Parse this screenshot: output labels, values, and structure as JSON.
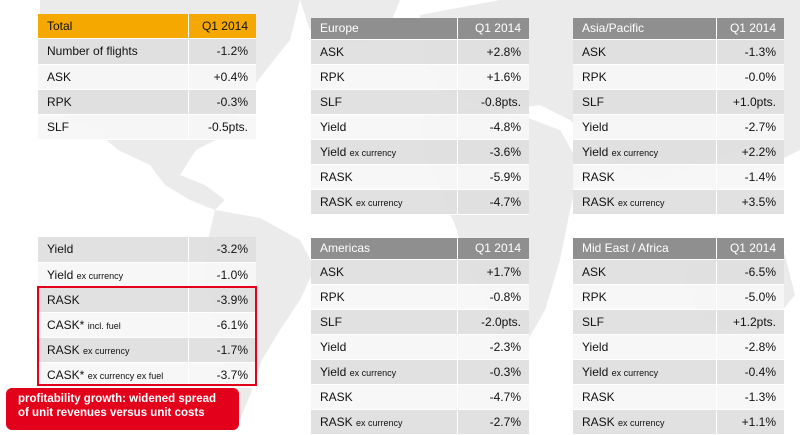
{
  "colors": {
    "total_header": "#f5a800",
    "region_header": "#8f8f8f",
    "callout": "#e3001b",
    "highlight_border": "#e3001b"
  },
  "total": {
    "title": "Total",
    "period": "Q1 2014",
    "rows": [
      {
        "label": "Number of flights",
        "value": "-1.2%"
      },
      {
        "label": "ASK",
        "value": "+0.4%"
      },
      {
        "label": "RPK",
        "value": "-0.3%"
      },
      {
        "label": "SLF",
        "value": "-0.5pts."
      }
    ]
  },
  "total_unit": {
    "rows": [
      {
        "label": "Yield",
        "suffix": "",
        "value": "-3.2%"
      },
      {
        "label": "Yield",
        "suffix": "ex currency",
        "value": "-1.0%"
      },
      {
        "label": "RASK",
        "suffix": "",
        "value": "-3.9%"
      },
      {
        "label": "CASK*",
        "suffix": "incl. fuel",
        "value": "-6.1%"
      },
      {
        "label": "RASK",
        "suffix": "ex currency",
        "value": "-1.7%"
      },
      {
        "label": "CASK*",
        "suffix": "ex currency ex fuel",
        "value": "-3.7%"
      }
    ]
  },
  "europe": {
    "title": "Europe",
    "period": "Q1 2014",
    "rows": [
      {
        "label": "ASK",
        "suffix": "",
        "value": "+2.8%"
      },
      {
        "label": "RPK",
        "suffix": "",
        "value": "+1.6%"
      },
      {
        "label": "SLF",
        "suffix": "",
        "value": "-0.8pts."
      },
      {
        "label": "Yield",
        "suffix": "",
        "value": "-4.8%"
      },
      {
        "label": "Yield",
        "suffix": "ex currency",
        "value": "-3.6%"
      },
      {
        "label": "RASK",
        "suffix": "",
        "value": "-5.9%"
      },
      {
        "label": "RASK",
        "suffix": "ex currency",
        "value": "-4.7%"
      }
    ]
  },
  "asia": {
    "title": "Asia/Pacific",
    "period": "Q1 2014",
    "rows": [
      {
        "label": "ASK",
        "suffix": "",
        "value": "-1.3%"
      },
      {
        "label": "RPK",
        "suffix": "",
        "value": "-0.0%"
      },
      {
        "label": "SLF",
        "suffix": "",
        "value": "+1.0pts."
      },
      {
        "label": "Yield",
        "suffix": "",
        "value": "-2.7%"
      },
      {
        "label": "Yield",
        "suffix": "ex currency",
        "value": "+2.2%"
      },
      {
        "label": "RASK",
        "suffix": "",
        "value": "-1.4%"
      },
      {
        "label": "RASK",
        "suffix": "ex currency",
        "value": "+3.5%"
      }
    ]
  },
  "americas": {
    "title": "Americas",
    "period": "Q1 2014",
    "rows": [
      {
        "label": "ASK",
        "suffix": "",
        "value": "+1.7%"
      },
      {
        "label": "RPK",
        "suffix": "",
        "value": "-0.8%"
      },
      {
        "label": "SLF",
        "suffix": "",
        "value": "-2.0pts."
      },
      {
        "label": "Yield",
        "suffix": "",
        "value": "-2.3%"
      },
      {
        "label": "Yield",
        "suffix": "ex currency",
        "value": "-0.3%"
      },
      {
        "label": "RASK",
        "suffix": "",
        "value": "-4.7%"
      },
      {
        "label": "RASK",
        "suffix": "ex currency",
        "value": "-2.7%"
      }
    ]
  },
  "mideast": {
    "title": "Mid East / Africa",
    "period": "Q1 2014",
    "rows": [
      {
        "label": "ASK",
        "suffix": "",
        "value": "-6.5%"
      },
      {
        "label": "RPK",
        "suffix": "",
        "value": "-5.0%"
      },
      {
        "label": "SLF",
        "suffix": "",
        "value": "+1.2pts."
      },
      {
        "label": "Yield",
        "suffix": "",
        "value": "-2.8%"
      },
      {
        "label": "Yield",
        "suffix": "ex currency",
        "value": "-0.4%"
      },
      {
        "label": "RASK",
        "suffix": "",
        "value": "-1.3%"
      },
      {
        "label": "RASK",
        "suffix": "ex currency",
        "value": "+1.1%"
      }
    ]
  },
  "callout": {
    "line1": "profitability growth: widened spread",
    "line2": "of unit revenues versus unit costs"
  }
}
